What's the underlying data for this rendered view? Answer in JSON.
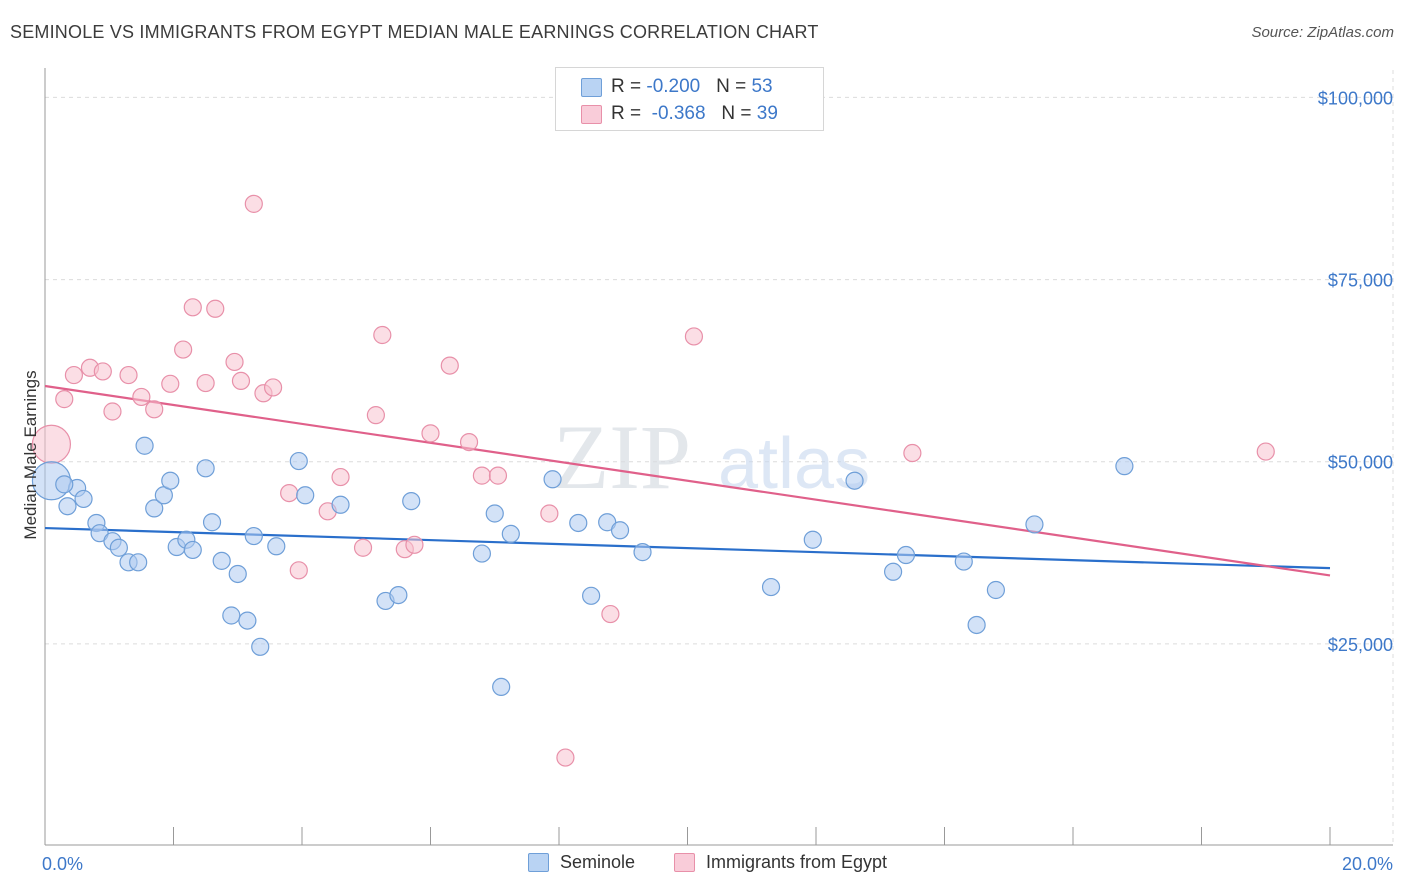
{
  "title": "SEMINOLE VS IMMIGRANTS FROM EGYPT MEDIAN MALE EARNINGS CORRELATION CHART",
  "source": "Source: ZipAtlas.com",
  "watermark": {
    "zip": "ZIP",
    "atlas": "atlas"
  },
  "legend": {
    "rows": [
      {
        "r_label": "R = ",
        "r_value": "-0.200",
        "n_label": "N = ",
        "n_value": "53"
      },
      {
        "r_label": "R = ",
        "r_value": "-0.368",
        "n_label": "N = ",
        "n_value": "39"
      }
    ]
  },
  "bottom_legend": [
    "Seminole",
    "Immigrants from Egypt"
  ],
  "chart_data": {
    "type": "scatter",
    "title": "SEMINOLE VS IMMIGRANTS FROM EGYPT MEDIAN MALE EARNINGS CORRELATION CHART",
    "xlabel": "",
    "ylabel": "Median Male Earnings",
    "xlim": [
      0,
      20
    ],
    "ylim": [
      0,
      105000
    ],
    "x_tick_labels": [
      "0.0%",
      "20.0%"
    ],
    "y_ticks": [
      25000,
      50000,
      75000,
      100000
    ],
    "y_tick_labels": [
      "$25,000",
      "$50,000",
      "$75,000",
      "$100,000"
    ],
    "grid": true,
    "legend_placement": "top-center",
    "colors": {
      "seminole_fill": "#aecbf0",
      "seminole_stroke": "#6f9fd8",
      "seminole_line": "#2a6fcb",
      "egypt_fill": "#f8c2d0",
      "egypt_stroke": "#e890a9",
      "egypt_line": "#e0608a"
    },
    "series": [
      {
        "name": "Seminole",
        "R": -0.2,
        "N": 53,
        "trend": {
          "x": [
            0,
            20
          ],
          "y": [
            43500,
            38000
          ]
        },
        "points": [
          {
            "x": 0.1,
            "y": 50000,
            "big": true
          },
          {
            "x": 0.5,
            "y": 49000
          },
          {
            "x": 0.35,
            "y": 46500
          },
          {
            "x": 0.6,
            "y": 47500
          },
          {
            "x": 0.8,
            "y": 44200
          },
          {
            "x": 0.85,
            "y": 42800
          },
          {
            "x": 1.05,
            "y": 41700
          },
          {
            "x": 1.15,
            "y": 40800
          },
          {
            "x": 1.3,
            "y": 38800
          },
          {
            "x": 1.45,
            "y": 38800
          },
          {
            "x": 1.55,
            "y": 54800
          },
          {
            "x": 1.7,
            "y": 46200
          },
          {
            "x": 1.85,
            "y": 48000
          },
          {
            "x": 1.95,
            "y": 50000
          },
          {
            "x": 2.05,
            "y": 40900
          },
          {
            "x": 2.2,
            "y": 41900
          },
          {
            "x": 2.3,
            "y": 40500
          },
          {
            "x": 2.5,
            "y": 51700
          },
          {
            "x": 2.6,
            "y": 44300
          },
          {
            "x": 2.75,
            "y": 39000
          },
          {
            "x": 3.0,
            "y": 37200
          },
          {
            "x": 2.9,
            "y": 31500
          },
          {
            "x": 3.15,
            "y": 30800
          },
          {
            "x": 3.25,
            "y": 42400
          },
          {
            "x": 3.35,
            "y": 27200
          },
          {
            "x": 3.6,
            "y": 41000
          },
          {
            "x": 3.95,
            "y": 52700
          },
          {
            "x": 4.05,
            "y": 48000
          },
          {
            "x": 4.6,
            "y": 46700
          },
          {
            "x": 5.3,
            "y": 33500
          },
          {
            "x": 5.5,
            "y": 34300
          },
          {
            "x": 5.7,
            "y": 47200
          },
          {
            "x": 6.8,
            "y": 40000
          },
          {
            "x": 7.0,
            "y": 45500
          },
          {
            "x": 7.25,
            "y": 42700
          },
          {
            "x": 7.1,
            "y": 21700
          },
          {
            "x": 7.9,
            "y": 50200
          },
          {
            "x": 8.3,
            "y": 44200
          },
          {
            "x": 8.5,
            "y": 34200
          },
          {
            "x": 8.75,
            "y": 44300
          },
          {
            "x": 8.95,
            "y": 43200
          },
          {
            "x": 9.3,
            "y": 40200
          },
          {
            "x": 11.3,
            "y": 35400
          },
          {
            "x": 11.95,
            "y": 41900
          },
          {
            "x": 12.6,
            "y": 50000
          },
          {
            "x": 13.2,
            "y": 37500
          },
          {
            "x": 13.4,
            "y": 39800
          },
          {
            "x": 14.3,
            "y": 38900
          },
          {
            "x": 14.5,
            "y": 30200
          },
          {
            "x": 14.8,
            "y": 35000
          },
          {
            "x": 15.4,
            "y": 44000
          },
          {
            "x": 16.8,
            "y": 52000
          },
          {
            "x": 0.3,
            "y": 49500
          }
        ]
      },
      {
        "name": "Immigrants from Egypt",
        "R": -0.368,
        "N": 39,
        "trend": {
          "x": [
            0,
            20
          ],
          "y": [
            63000,
            37000
          ]
        },
        "points": [
          {
            "x": 0.1,
            "y": 55000,
            "big": true
          },
          {
            "x": 0.3,
            "y": 61200
          },
          {
            "x": 0.45,
            "y": 64500
          },
          {
            "x": 0.7,
            "y": 65500
          },
          {
            "x": 0.9,
            "y": 65000
          },
          {
            "x": 1.05,
            "y": 59500
          },
          {
            "x": 1.3,
            "y": 64500
          },
          {
            "x": 1.5,
            "y": 61500
          },
          {
            "x": 1.7,
            "y": 59800
          },
          {
            "x": 1.95,
            "y": 63300
          },
          {
            "x": 2.15,
            "y": 68000
          },
          {
            "x": 2.3,
            "y": 73800
          },
          {
            "x": 2.5,
            "y": 63400
          },
          {
            "x": 2.65,
            "y": 73600
          },
          {
            "x": 2.95,
            "y": 66300
          },
          {
            "x": 3.05,
            "y": 63700
          },
          {
            "x": 3.25,
            "y": 88000
          },
          {
            "x": 3.4,
            "y": 62000
          },
          {
            "x": 3.55,
            "y": 62800
          },
          {
            "x": 3.8,
            "y": 48300
          },
          {
            "x": 3.95,
            "y": 37700
          },
          {
            "x": 4.4,
            "y": 45800
          },
          {
            "x": 4.6,
            "y": 50500
          },
          {
            "x": 4.95,
            "y": 40800
          },
          {
            "x": 5.15,
            "y": 59000
          },
          {
            "x": 5.25,
            "y": 70000
          },
          {
            "x": 5.6,
            "y": 40600
          },
          {
            "x": 5.75,
            "y": 41200
          },
          {
            "x": 6.0,
            "y": 56500
          },
          {
            "x": 6.3,
            "y": 65800
          },
          {
            "x": 6.6,
            "y": 55300
          },
          {
            "x": 6.8,
            "y": 50700
          },
          {
            "x": 7.05,
            "y": 50700
          },
          {
            "x": 7.85,
            "y": 45500
          },
          {
            "x": 8.1,
            "y": 12000
          },
          {
            "x": 8.8,
            "y": 31700
          },
          {
            "x": 10.1,
            "y": 69800
          },
          {
            "x": 13.5,
            "y": 53800
          },
          {
            "x": 19.0,
            "y": 54000
          }
        ]
      }
    ]
  }
}
